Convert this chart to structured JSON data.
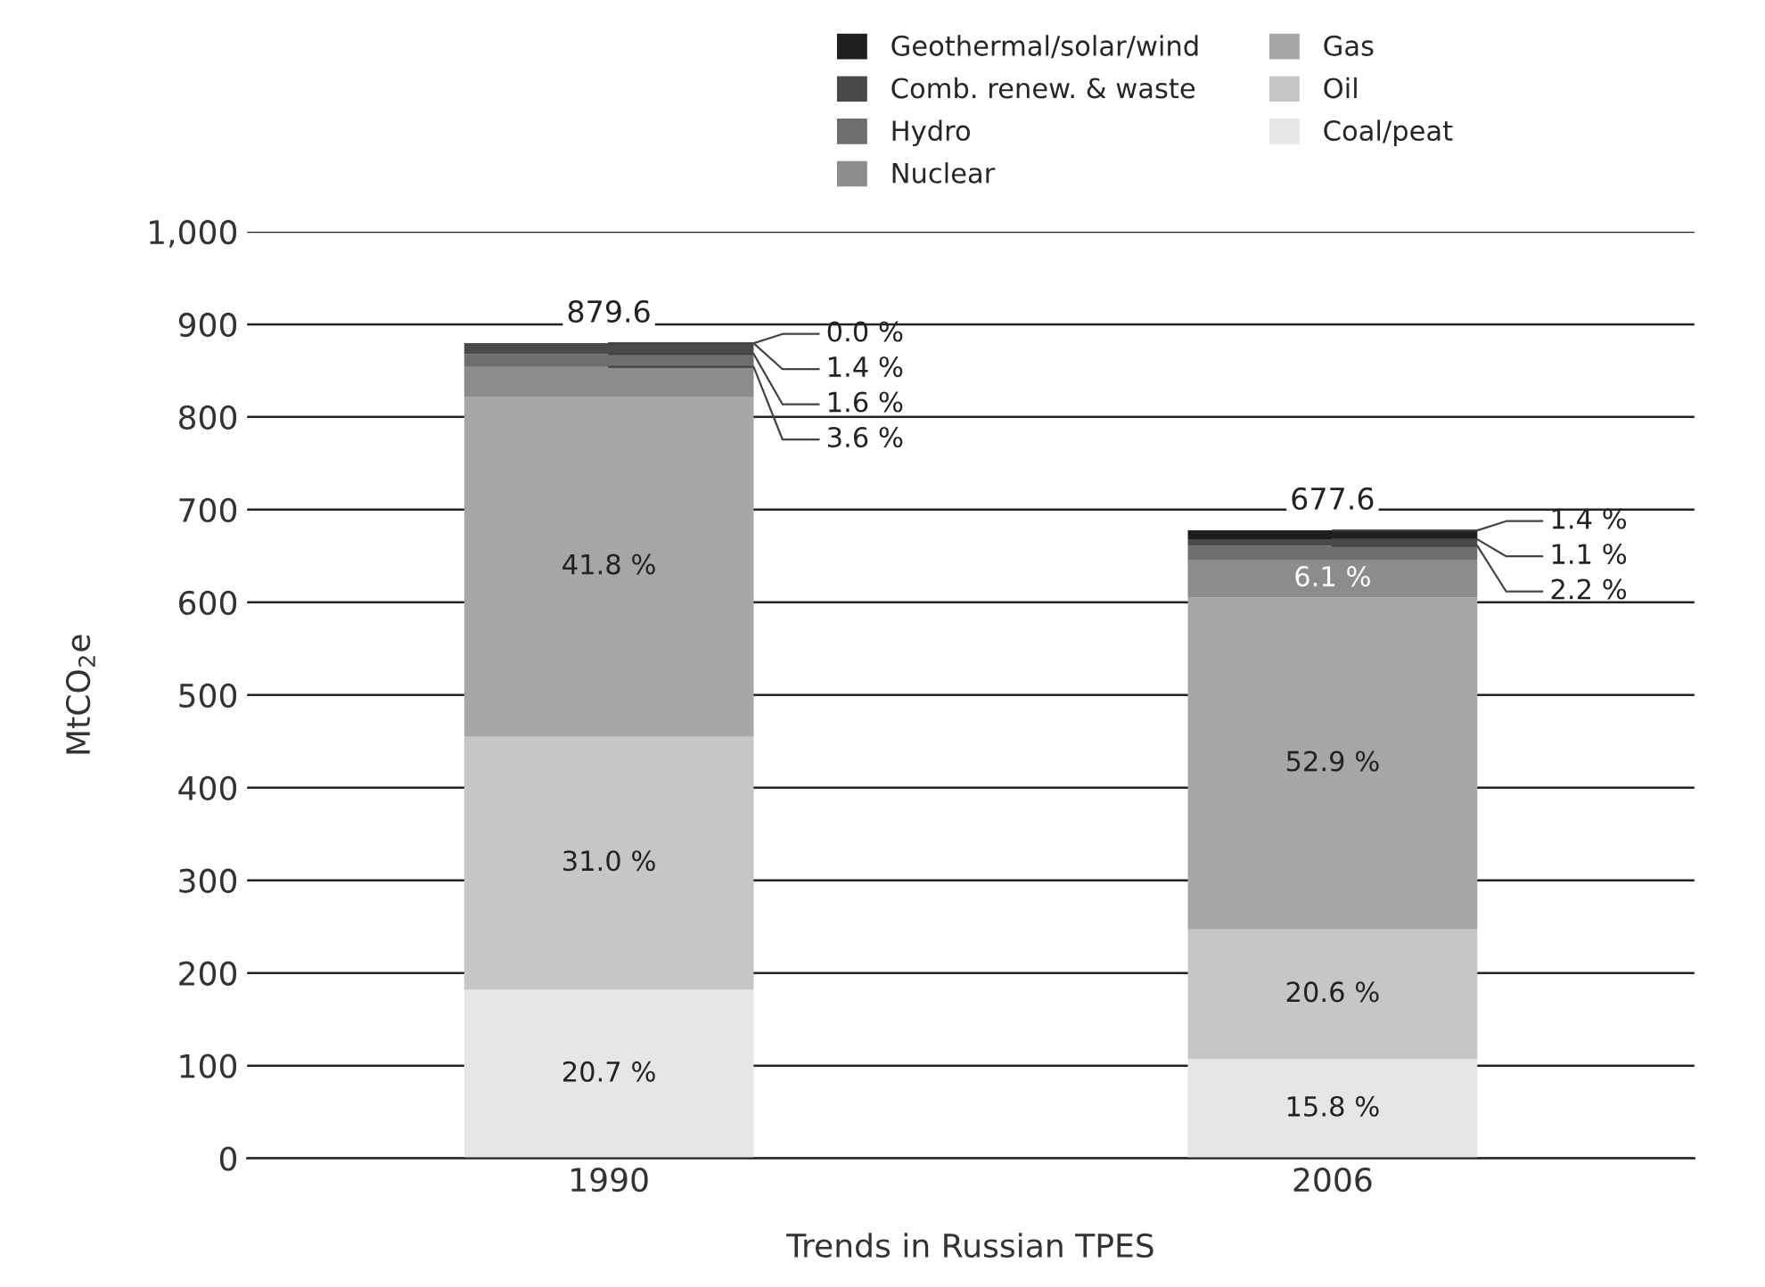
{
  "chart_data": {
    "type": "bar",
    "stacked": true,
    "xlabel": "Trends in Russian TPES",
    "ylabel": "MtCO$_{2}$e",
    "categories": [
      "1990",
      "2006"
    ],
    "series": [
      {
        "name": "Coal/peat",
        "color": "#e6e6e6",
        "values": [
          182,
          107
        ]
      },
      {
        "name": "Oil",
        "color": "#c6c6c6",
        "values": [
          273,
          140
        ]
      },
      {
        "name": "Gas",
        "color": "#a6a6a7",
        "values": [
          367,
          358
        ]
      },
      {
        "name": "Nuclear",
        "color": "#8c8c8c",
        "values": [
          32,
          41
        ]
      },
      {
        "name": "Hydro",
        "color": "#6e6e6e",
        "values": [
          14,
          15
        ]
      },
      {
        "name": "Comb. renew. & waste",
        "color": "#4a4a4a",
        "values": [
          11.6,
          7
        ]
      },
      {
        "name": "Geothermal/solar/wind",
        "color": "#1e1e1e",
        "values": [
          0,
          9.6
        ]
      }
    ],
    "annotations": [
      "20.7 %",
      "15.8 %",
      "31.0 %",
      "20.6 %",
      "41.8 %",
      "52.9 %",
      {
        "text": "3.6 %",
        "x": "1990",
        "y": 854
      },
      "6.1 %",
      {
        "text": "1.6 %",
        "x": "1990",
        "y": 868
      },
      {
        "text": "2.2 %",
        "x": "2006",
        "y": 661
      },
      {
        "text": "1.4 %",
        "x": "1990",
        "y": 879.6
      },
      {
        "text": "1.1 %",
        "x": "2006",
        "y": 668
      },
      {
        "text": "0.0 %",
        "x": "1990",
        "y": 879.6
      },
      {
        "text": "1.4 %",
        "x": "2006",
        "y": 677.6
      }
    ],
    "totals": [
      "879.6",
      "677.6"
    ],
    "ylim": [
      0,
      1000
    ],
    "yticks": [
      0,
      100,
      200,
      300,
      400,
      500,
      600,
      700,
      800,
      900,
      {
        "value": 1000,
        "label": "1,000"
      }
    ],
    "grid": "y",
    "legend": "top"
  }
}
